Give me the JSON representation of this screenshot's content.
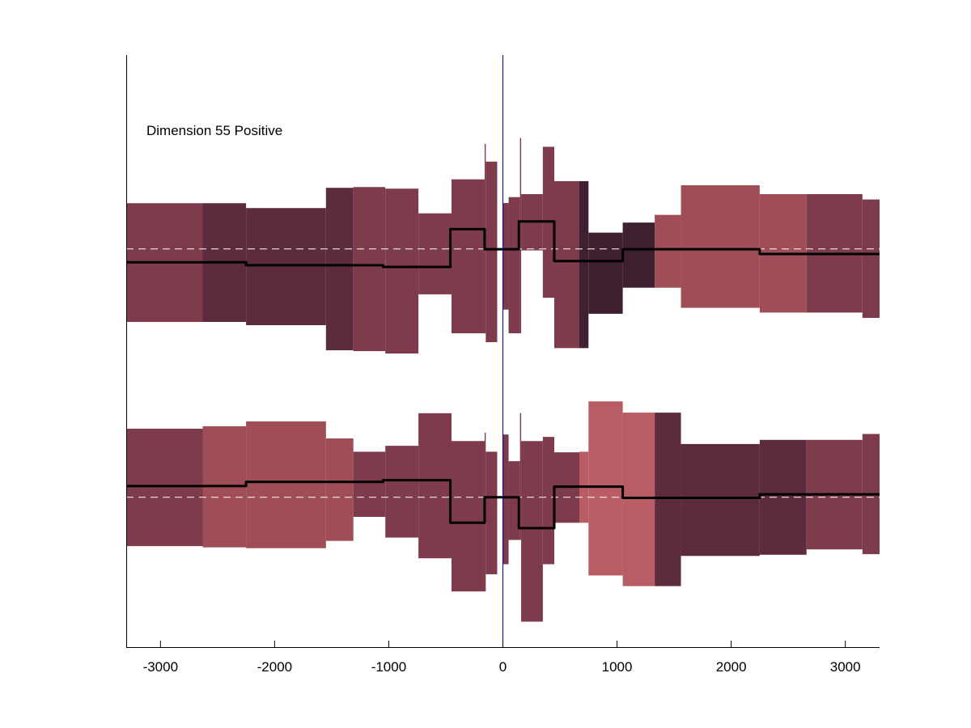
{
  "chart_data": {
    "type": "area",
    "title": "",
    "annotation": "Dimension 55 Positive",
    "xlabel": "",
    "ylabel": "",
    "xlim": [
      -3300,
      3300
    ],
    "ylim": [
      0,
      1
    ],
    "xticks": [
      -3000,
      -2000,
      -1000,
      0,
      1000,
      2000,
      3000
    ],
    "xtick_labels": [
      "-3000",
      "-2000",
      "-1000",
      "0",
      "1000",
      "2000",
      "3000"
    ],
    "grid": false,
    "center_line_x": 0,
    "colors": {
      "axis": "#000000",
      "center_line": "#0000a0",
      "signal_line": "#000000",
      "baseline_dash": "#ffffff",
      "band_dark": "#3f2030",
      "band_medium": "#5d2b3e",
      "band_mid": "#7d3b4b",
      "band_light": "#9f4d57",
      "band_lightest": "#b85d63"
    },
    "panels": [
      {
        "name": "upper",
        "baseline": 0.6725,
        "segments": [
          {
            "x0": -3300,
            "x1": -2630,
            "top": 0.7497,
            "bottom": 0.5492,
            "shade": "band_mid"
          },
          {
            "x0": -2630,
            "x1": -2250,
            "top": 0.7497,
            "bottom": 0.5492,
            "shade": "band_medium"
          },
          {
            "x0": -2250,
            "x1": -1550,
            "top": 0.7415,
            "bottom": 0.5437,
            "shade": "band_medium"
          },
          {
            "x0": -1550,
            "x1": -1310,
            "top": 0.7757,
            "bottom": 0.5013,
            "shade": "band_medium"
          },
          {
            "x0": -1310,
            "x1": -1030,
            "top": 0.777,
            "bottom": 0.4999,
            "shade": "band_mid"
          },
          {
            "x0": -1030,
            "x1": -740,
            "top": 0.7743,
            "bottom": 0.4958,
            "shade": "band_mid"
          },
          {
            "x0": -740,
            "x1": -450,
            "top": 0.7326,
            "bottom": 0.5958,
            "shade": "band_mid"
          },
          {
            "x0": -450,
            "x1": -160,
            "top": 0.79,
            "bottom": 0.53,
            "shade": "band_mid"
          },
          {
            "x0": -160,
            "x1": -150,
            "top": 0.85,
            "bottom": 0.53,
            "shade": "band_mid"
          },
          {
            "x0": -150,
            "x1": -50,
            "top": 0.82,
            "bottom": 0.515,
            "shade": "band_mid"
          },
          {
            "x0": 0,
            "x1": 50,
            "top": 0.75,
            "bottom": 0.57,
            "shade": "band_mid"
          },
          {
            "x0": 50,
            "x1": 150,
            "top": 0.76,
            "bottom": 0.53,
            "shade": "band_mid"
          },
          {
            "x0": 150,
            "x1": 160,
            "top": 0.86,
            "bottom": 0.53,
            "shade": "band_mid"
          },
          {
            "x0": 160,
            "x1": 350,
            "top": 0.765,
            "bottom": 0.67,
            "shade": "band_mid"
          },
          {
            "x0": 350,
            "x1": 450,
            "top": 0.845,
            "bottom": 0.59,
            "shade": "band_mid"
          },
          {
            "x0": 450,
            "x1": 670,
            "top": 0.787,
            "bottom": 0.505,
            "shade": "band_mid"
          },
          {
            "x0": 670,
            "x1": 750,
            "top": 0.787,
            "bottom": 0.505,
            "shade": "band_dark"
          },
          {
            "x0": 750,
            "x1": 1050,
            "top": 0.7,
            "bottom": 0.563,
            "shade": "band_dark"
          },
          {
            "x0": 1050,
            "x1": 1330,
            "top": 0.717,
            "bottom": 0.607,
            "shade": "band_dark"
          },
          {
            "x0": 1330,
            "x1": 1560,
            "top": 0.73,
            "bottom": 0.607,
            "shade": "band_light"
          },
          {
            "x0": 1560,
            "x1": 2250,
            "top": 0.78,
            "bottom": 0.573,
            "shade": "band_light"
          },
          {
            "x0": 2250,
            "x1": 2660,
            "top": 0.765,
            "bottom": 0.565,
            "shade": "band_light"
          },
          {
            "x0": 2660,
            "x1": 3150,
            "top": 0.765,
            "bottom": 0.565,
            "shade": "band_mid"
          },
          {
            "x0": 3150,
            "x1": 3300,
            "top": 0.756,
            "bottom": 0.556,
            "shade": "band_mid"
          }
        ],
        "signal": [
          [
            -3300,
            0.65
          ],
          [
            -2250,
            0.65
          ],
          [
            -2250,
            0.645
          ],
          [
            -1050,
            0.645
          ],
          [
            -1050,
            0.642
          ],
          [
            -460,
            0.642
          ],
          [
            -460,
            0.706
          ],
          [
            -160,
            0.706
          ],
          [
            -160,
            0.672
          ],
          [
            140,
            0.672
          ],
          [
            140,
            0.719
          ],
          [
            450,
            0.719
          ],
          [
            450,
            0.652
          ],
          [
            1050,
            0.652
          ],
          [
            1050,
            0.672
          ],
          [
            2250,
            0.672
          ],
          [
            2250,
            0.664
          ],
          [
            3300,
            0.664
          ]
        ]
      },
      {
        "name": "lower",
        "baseline": 0.2531,
        "segments": [
          {
            "x0": -3300,
            "x1": -2630,
            "top": 0.3689,
            "bottom": 0.1706,
            "shade": "band_mid"
          },
          {
            "x0": -2630,
            "x1": -2250,
            "top": 0.373,
            "bottom": 0.1685,
            "shade": "band_light"
          },
          {
            "x0": -2250,
            "x1": -1550,
            "top": 0.3812,
            "bottom": 0.1671,
            "shade": "band_light"
          },
          {
            "x0": -1550,
            "x1": -1310,
            "top": 0.3525,
            "bottom": 0.1794,
            "shade": "band_light"
          },
          {
            "x0": -1310,
            "x1": -1030,
            "top": 0.33,
            "bottom": 0.22,
            "shade": "band_mid"
          },
          {
            "x0": -1030,
            "x1": -740,
            "top": 0.34,
            "bottom": 0.185,
            "shade": "band_mid"
          },
          {
            "x0": -740,
            "x1": -450,
            "top": 0.395,
            "bottom": 0.15,
            "shade": "band_mid"
          },
          {
            "x0": -450,
            "x1": -160,
            "top": 0.348,
            "bottom": 0.094,
            "shade": "band_mid"
          },
          {
            "x0": -160,
            "x1": -150,
            "top": 0.362,
            "bottom": 0.094,
            "shade": "band_mid"
          },
          {
            "x0": -150,
            "x1": -50,
            "top": 0.33,
            "bottom": 0.123,
            "shade": "band_mid"
          },
          {
            "x0": 0,
            "x1": 50,
            "top": 0.359,
            "bottom": 0.14,
            "shade": "band_mid"
          },
          {
            "x0": 50,
            "x1": 150,
            "top": 0.314,
            "bottom": 0.181,
            "shade": "band_mid"
          },
          {
            "x0": 150,
            "x1": 160,
            "top": 0.395,
            "bottom": 0.181,
            "shade": "band_mid"
          },
          {
            "x0": 160,
            "x1": 350,
            "top": 0.348,
            "bottom": 0.043,
            "shade": "band_mid"
          },
          {
            "x0": 350,
            "x1": 450,
            "top": 0.355,
            "bottom": 0.14,
            "shade": "band_mid"
          },
          {
            "x0": 450,
            "x1": 670,
            "top": 0.329,
            "bottom": 0.21,
            "shade": "band_mid"
          },
          {
            "x0": 670,
            "x1": 750,
            "top": 0.33,
            "bottom": 0.21,
            "shade": "band_lightest"
          },
          {
            "x0": 750,
            "x1": 1050,
            "top": 0.415,
            "bottom": 0.121,
            "shade": "band_lightest"
          },
          {
            "x0": 1050,
            "x1": 1330,
            "top": 0.396,
            "bottom": 0.103,
            "shade": "band_lightest"
          },
          {
            "x0": 1330,
            "x1": 1560,
            "top": 0.396,
            "bottom": 0.103,
            "shade": "band_medium"
          },
          {
            "x0": 1560,
            "x1": 2250,
            "top": 0.343,
            "bottom": 0.154,
            "shade": "band_medium"
          },
          {
            "x0": 2250,
            "x1": 2660,
            "top": 0.35,
            "bottom": 0.156,
            "shade": "band_medium"
          },
          {
            "x0": 2660,
            "x1": 3150,
            "top": 0.35,
            "bottom": 0.165,
            "shade": "band_mid"
          },
          {
            "x0": 3150,
            "x1": 3300,
            "top": 0.36,
            "bottom": 0.157,
            "shade": "band_mid"
          }
        ],
        "signal": [
          [
            -3300,
            0.272
          ],
          [
            -2250,
            0.272
          ],
          [
            -2250,
            0.279
          ],
          [
            -1050,
            0.279
          ],
          [
            -1050,
            0.282
          ],
          [
            -460,
            0.282
          ],
          [
            -460,
            0.21
          ],
          [
            -160,
            0.21
          ],
          [
            -160,
            0.253
          ],
          [
            140,
            0.253
          ],
          [
            140,
            0.201
          ],
          [
            450,
            0.201
          ],
          [
            450,
            0.271
          ],
          [
            1050,
            0.271
          ],
          [
            1050,
            0.252
          ],
          [
            2250,
            0.252
          ],
          [
            2250,
            0.258
          ],
          [
            3300,
            0.258
          ]
        ]
      }
    ]
  }
}
